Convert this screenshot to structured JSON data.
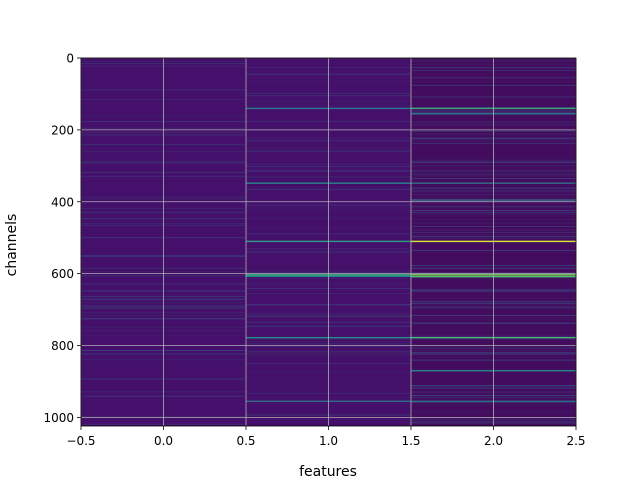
{
  "chart_data": {
    "type": "heatmap",
    "colormap": "viridis",
    "xlabel": "features",
    "ylabel": "channels",
    "xlim": [
      -0.5,
      2.5
    ],
    "ylim": [
      1024,
      0
    ],
    "y_inverted": true,
    "rows": 1024,
    "columns": 3,
    "grid": true,
    "grid_color": "#b0b0b0",
    "x_ticks": [
      -0.5,
      0.0,
      0.5,
      1.0,
      1.5,
      2.0,
      2.5
    ],
    "x_tick_labels": [
      "−0.5",
      "0.0",
      "0.5",
      "1.0",
      "1.5",
      "2.0",
      "2.5"
    ],
    "y_ticks": [
      0,
      200,
      400,
      600,
      800,
      1000
    ],
    "y_tick_labels": [
      "0",
      "200",
      "400",
      "600",
      "800",
      "1000"
    ],
    "column_base_values": [
      0.06,
      0.04,
      0.02
    ],
    "column_base_colors": [
      "#44106b",
      "#45106c",
      "#440c5e"
    ],
    "highlight_bands": [
      {
        "column": 1,
        "channel": 140,
        "value": 0.4
      },
      {
        "column": 1,
        "channel": 348,
        "value": 0.45
      },
      {
        "column": 1,
        "channel": 510,
        "value": 0.55
      },
      {
        "column": 1,
        "channel": 603,
        "value": 0.6
      },
      {
        "column": 1,
        "channel": 607,
        "value": 0.5
      },
      {
        "column": 1,
        "channel": 778,
        "value": 0.5
      },
      {
        "column": 1,
        "channel": 955,
        "value": 0.35
      },
      {
        "column": 2,
        "channel": 140,
        "value": 0.6
      },
      {
        "column": 2,
        "channel": 155,
        "value": 0.4
      },
      {
        "column": 2,
        "channel": 348,
        "value": 0.35
      },
      {
        "column": 2,
        "channel": 395,
        "value": 0.35
      },
      {
        "column": 2,
        "channel": 510,
        "value": 0.95
      },
      {
        "column": 2,
        "channel": 603,
        "value": 0.8
      },
      {
        "column": 2,
        "channel": 608,
        "value": 0.7
      },
      {
        "column": 2,
        "channel": 778,
        "value": 0.65
      },
      {
        "column": 2,
        "channel": 870,
        "value": 0.45
      },
      {
        "column": 2,
        "channel": 955,
        "value": 0.35
      }
    ]
  }
}
